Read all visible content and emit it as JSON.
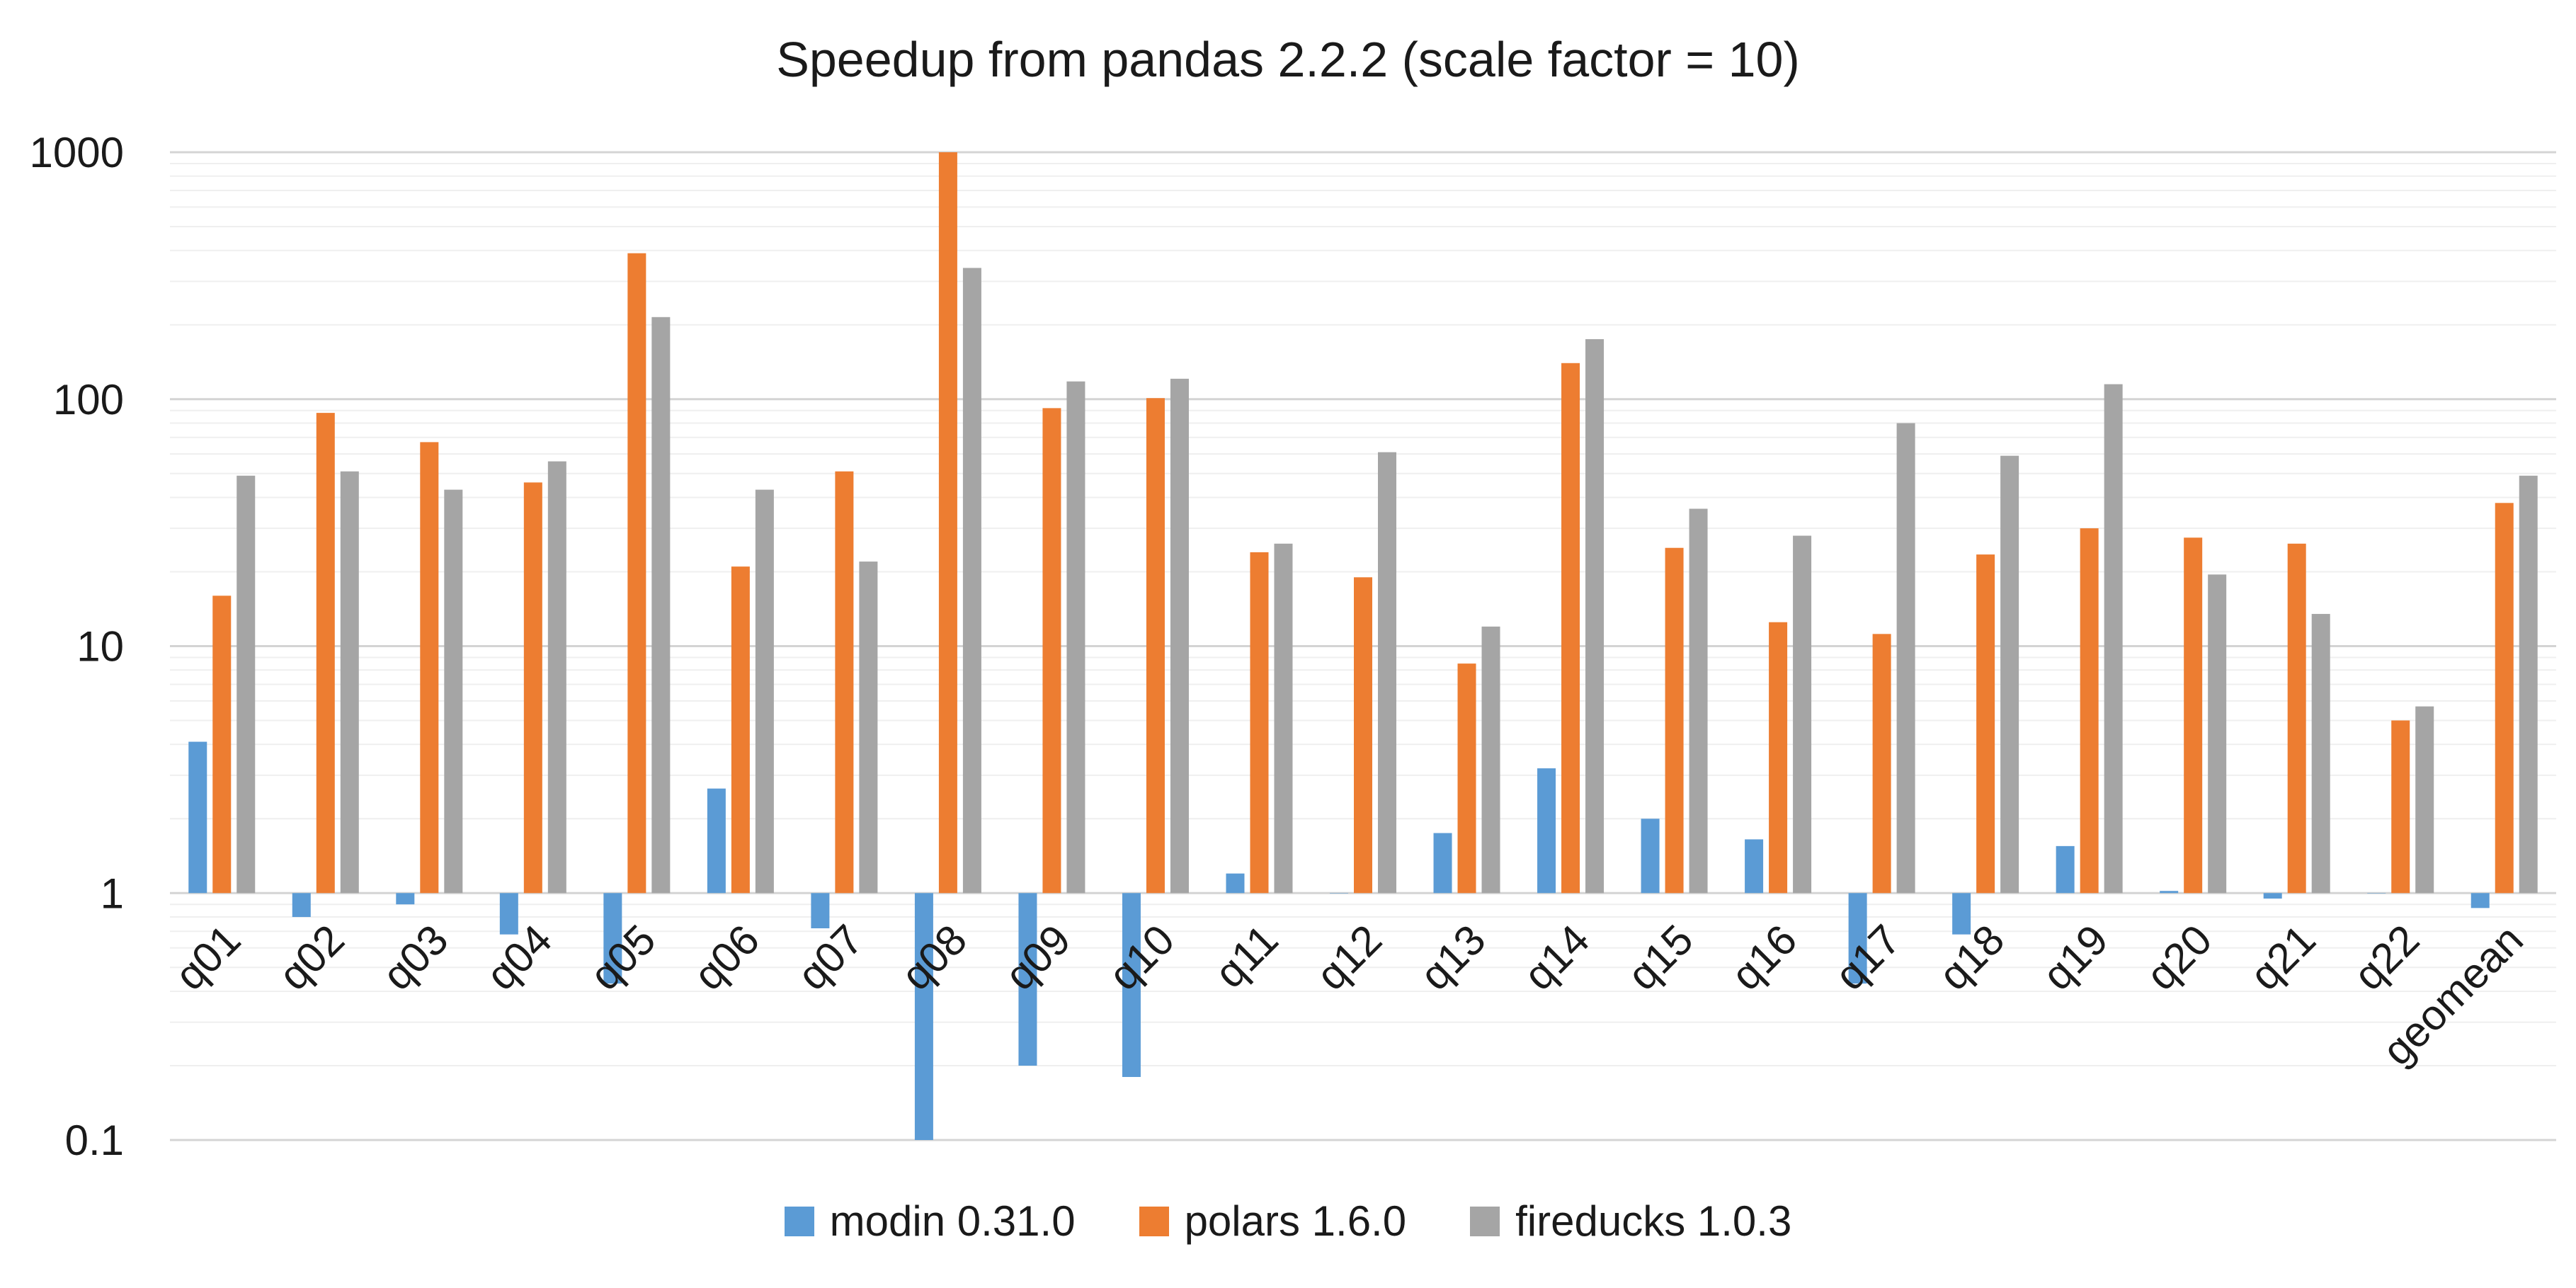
{
  "chart_data": {
    "type": "bar",
    "title": "Speedup from pandas 2.2.2 (scale factor = 10)",
    "xlabel": "",
    "ylabel": "",
    "yscale": "log",
    "ylim": [
      0.1,
      1000
    ],
    "yticks": [
      "0.1",
      "1",
      "10",
      "100",
      "1000"
    ],
    "baseline": 1,
    "grid": true,
    "legend_position": "bottom",
    "categories": [
      "q01",
      "q02",
      "q03",
      "q04",
      "q05",
      "q06",
      "q07",
      "q08",
      "q09",
      "q10",
      "q11",
      "q12",
      "q13",
      "q14",
      "q15",
      "q16",
      "q17",
      "q18",
      "q19",
      "q20",
      "q21",
      "q22",
      "geomean"
    ],
    "series": [
      {
        "name": "modin 0.31.0",
        "color": "#5b9bd5",
        "values": [
          4.1,
          0.8,
          0.9,
          0.68,
          0.43,
          2.65,
          0.72,
          0.1,
          0.2,
          0.18,
          1.2,
          1.0,
          1.75,
          3.2,
          2.0,
          1.65,
          0.43,
          0.68,
          1.55,
          1.02,
          0.95,
          1.0,
          0.87
        ]
      },
      {
        "name": "polars 1.6.0",
        "color": "#ed7d31",
        "values": [
          16,
          88,
          67,
          46,
          390,
          21,
          51,
          1000,
          92,
          101,
          24,
          19,
          8.5,
          140,
          25,
          12.5,
          11.2,
          23.5,
          30,
          27.5,
          26,
          5.0,
          38
        ]
      },
      {
        "name": "fireducks 1.0.3",
        "color": "#a5a5a5",
        "values": [
          49,
          51,
          43,
          56,
          215,
          43,
          22,
          340,
          118,
          121,
          26,
          61,
          12,
          175,
          36,
          28,
          80,
          59,
          115,
          19.5,
          13.5,
          5.7,
          49
        ]
      }
    ]
  }
}
